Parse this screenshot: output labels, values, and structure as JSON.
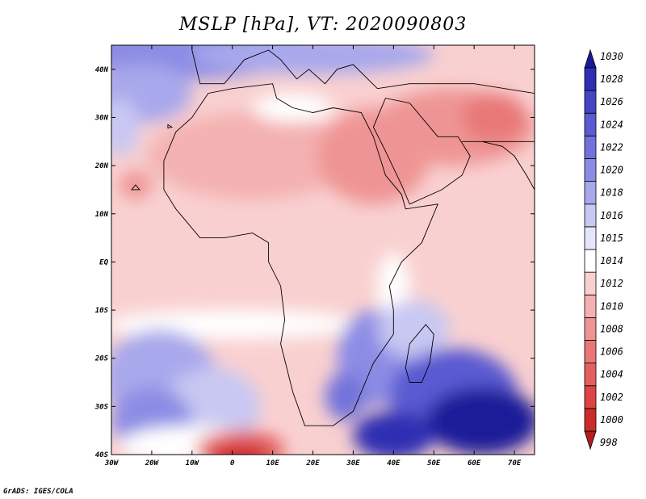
{
  "title": "MSLP [hPa], VT: 2020090803",
  "credit": "GrADS: IGES/COLA",
  "map": {
    "lon_range": [
      -30,
      75
    ],
    "lat_range": [
      -40,
      45
    ],
    "lon_ticks": [
      {
        "value": -30,
        "label": "30W"
      },
      {
        "value": -20,
        "label": "20W"
      },
      {
        "value": -10,
        "label": "10W"
      },
      {
        "value": 0,
        "label": "0"
      },
      {
        "value": 10,
        "label": "10E"
      },
      {
        "value": 20,
        "label": "20E"
      },
      {
        "value": 30,
        "label": "30E"
      },
      {
        "value": 40,
        "label": "40E"
      },
      {
        "value": 50,
        "label": "50E"
      },
      {
        "value": 60,
        "label": "60E"
      },
      {
        "value": 70,
        "label": "70E"
      }
    ],
    "lat_ticks": [
      {
        "value": 40,
        "label": "40N"
      },
      {
        "value": 30,
        "label": "30N"
      },
      {
        "value": 20,
        "label": "20N"
      },
      {
        "value": 10,
        "label": "10N"
      },
      {
        "value": 0,
        "label": "EQ"
      },
      {
        "value": -10,
        "label": "10S"
      },
      {
        "value": -20,
        "label": "20S"
      },
      {
        "value": -30,
        "label": "30S"
      },
      {
        "value": -40,
        "label": "40S"
      }
    ]
  },
  "colorbar": {
    "levels": [
      {
        "label": "998",
        "color": "#b21d1d"
      },
      {
        "label": "1000",
        "color": "#cc2b2b"
      },
      {
        "label": "1002",
        "color": "#dc4545"
      },
      {
        "label": "1004",
        "color": "#e45f5f"
      },
      {
        "label": "1006",
        "color": "#e87878"
      },
      {
        "label": "1008",
        "color": "#ef9494"
      },
      {
        "label": "1010",
        "color": "#f4b1b1"
      },
      {
        "label": "1012",
        "color": "#f9d0d0"
      },
      {
        "label": "1014",
        "color": "#ffffff"
      },
      {
        "label": "1015",
        "color": "#e6e6fa"
      },
      {
        "label": "1016",
        "color": "#c8c8f3"
      },
      {
        "label": "1018",
        "color": "#a8a8ec"
      },
      {
        "label": "1020",
        "color": "#8c8ce5"
      },
      {
        "label": "1022",
        "color": "#7272dc"
      },
      {
        "label": "1024",
        "color": "#5a5ad2"
      },
      {
        "label": "1026",
        "color": "#4545c4"
      },
      {
        "label": "1028",
        "color": "#2f2fb2"
      },
      {
        "label": "1030",
        "color": "#1a1a99"
      }
    ]
  },
  "colors": {
    "land_line": "#000000",
    "low_pressure": "#ef9494",
    "high_pressure": "#1a1a99"
  }
}
